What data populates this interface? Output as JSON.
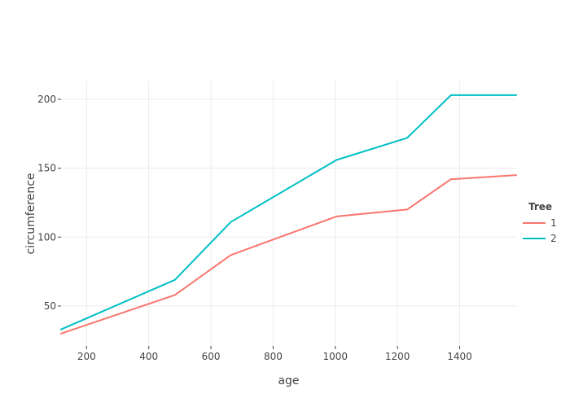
{
  "chart_data": {
    "type": "line",
    "xlabel": "age",
    "ylabel": "circumference",
    "xlim": [
      118,
      1582
    ],
    "ylim": [
      21,
      213
    ],
    "xticks": [
      200,
      400,
      600,
      800,
      1000,
      1200,
      1400
    ],
    "yticks": [
      50,
      100,
      150,
      200
    ],
    "grid": true,
    "legend": {
      "title": "Tree",
      "position": "right"
    },
    "series": [
      {
        "name": "1",
        "color": "#F8766D",
        "x": [
          118,
          484,
          664,
          1004,
          1231,
          1372,
          1582
        ],
        "y": [
          30,
          58,
          87,
          115,
          120,
          142,
          145
        ]
      },
      {
        "name": "2",
        "color": "#00BFC4",
        "x": [
          118,
          484,
          664,
          1004,
          1231,
          1372,
          1582
        ],
        "y": [
          33,
          69,
          111,
          156,
          172,
          203,
          203
        ]
      }
    ]
  }
}
